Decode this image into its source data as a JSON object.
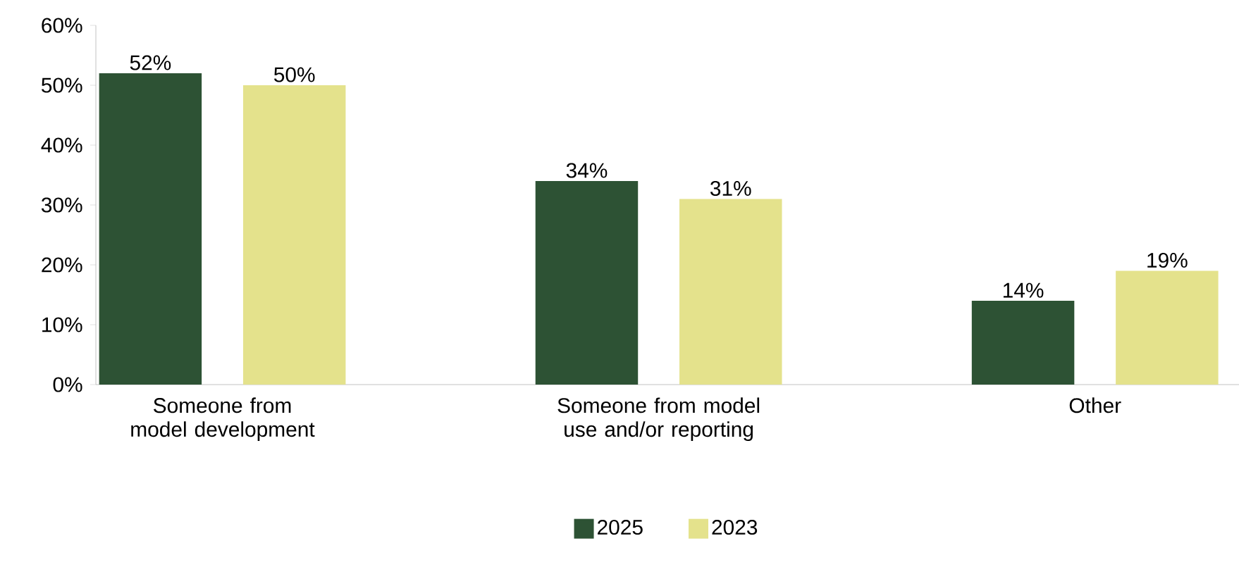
{
  "chart_data": {
    "type": "bar",
    "categories": [
      "Someone from model development",
      "Someone from model use and/or reporting",
      "Other"
    ],
    "series": [
      {
        "name": "2025",
        "color": "#2d5234",
        "values": [
          52,
          34,
          14
        ],
        "value_labels": [
          "52%",
          "34%",
          "14%"
        ]
      },
      {
        "name": "2023",
        "color": "#e4e28c",
        "values": [
          50,
          31,
          19
        ],
        "value_labels": [
          "50%",
          "31%",
          "19%"
        ]
      }
    ],
    "ylim": [
      0,
      60
    ],
    "yticks": [
      {
        "value": 0,
        "label": "0%"
      },
      {
        "value": 10,
        "label": "10%"
      },
      {
        "value": 20,
        "label": "20%"
      },
      {
        "value": 30,
        "label": "30%"
      },
      {
        "value": 40,
        "label": "40%"
      },
      {
        "value": 50,
        "label": "50%"
      },
      {
        "value": 60,
        "label": "60%"
      }
    ],
    "grid": false,
    "legend": "bottom"
  }
}
